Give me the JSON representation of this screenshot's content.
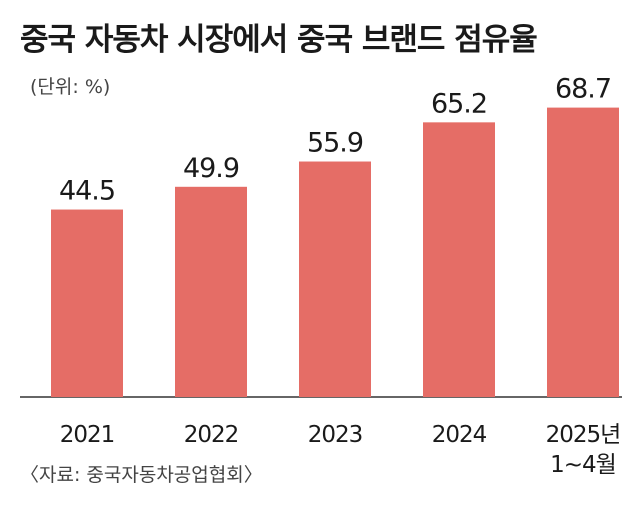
{
  "chart_data": {
    "type": "bar",
    "title": "중국 자동차 시장에서 중국 브랜드 점유율",
    "unit_note": "(단위: %)",
    "source": "〈자료: 중국자동차공업협회〉",
    "categories": [
      [
        "2021"
      ],
      [
        "2022"
      ],
      [
        "2023"
      ],
      [
        "2024"
      ],
      [
        "2025년",
        "1~4월"
      ]
    ],
    "values": [
      44.5,
      49.9,
      55.9,
      65.2,
      68.7
    ],
    "value_labels": [
      "44.5",
      "49.9",
      "55.9",
      "65.2",
      "68.7"
    ],
    "ylim": [
      0,
      80
    ],
    "grid": false,
    "bar_color": "#e56d66"
  }
}
